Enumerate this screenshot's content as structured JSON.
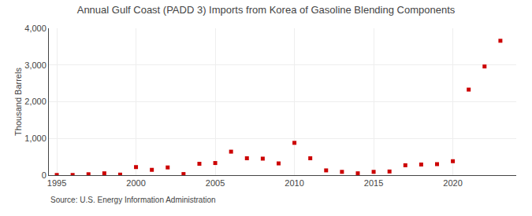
{
  "chart_data": {
    "type": "scatter",
    "title": "Annual Gulf Coast (PADD 3) Imports from Korea of Gasoline Blending Components",
    "ylabel": "Thousand Barrels",
    "annotations": [
      "Source: U.S. Energy Information Administration"
    ],
    "x": [
      1995,
      1996,
      1997,
      1998,
      1999,
      2000,
      2001,
      2002,
      2003,
      2004,
      2005,
      2006,
      2007,
      2008,
      2009,
      2010,
      2011,
      2012,
      2013,
      2014,
      2015,
      2016,
      2017,
      2018,
      2019,
      2020,
      2021,
      2022,
      2023
    ],
    "values": [
      5,
      5,
      25,
      50,
      15,
      220,
      145,
      210,
      30,
      310,
      330,
      640,
      460,
      450,
      320,
      880,
      460,
      130,
      90,
      50,
      90,
      100,
      270,
      290,
      300,
      380,
      2330,
      2960,
      3660
    ],
    "color": "#cc0000",
    "marker": "square",
    "xlim": [
      1994.5,
      2024
    ],
    "xticks": [
      1995,
      2000,
      2005,
      2010,
      2015,
      2020
    ],
    "ylim": [
      0,
      4000
    ],
    "yticks": [
      0,
      {
        "value": 1000,
        "label": "1,000"
      },
      {
        "value": 2000,
        "label": "2,000"
      },
      {
        "value": 3000,
        "label": "3,000"
      },
      {
        "value": 4000,
        "label": "4,000"
      }
    ],
    "grid": true
  }
}
